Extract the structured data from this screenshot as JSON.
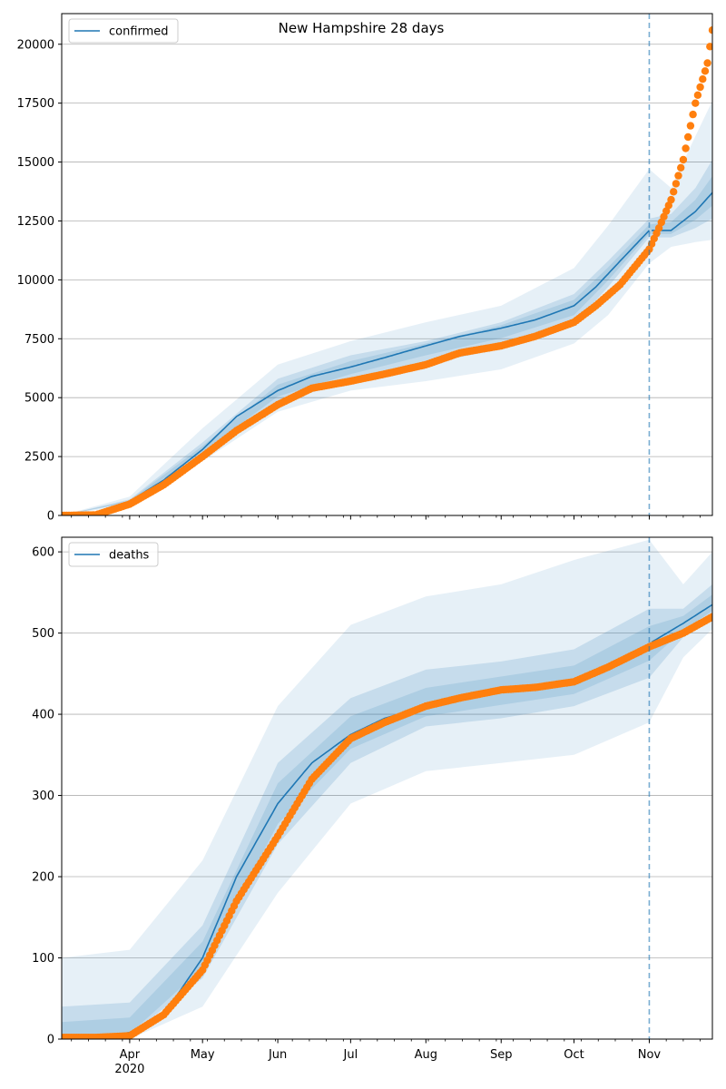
{
  "chart_data": [
    {
      "type": "line",
      "title": "New Hampshire 28 days",
      "xlabel": "",
      "ylabel": "",
      "grid": "horizontal",
      "legend_position": "top-left",
      "legend": "confirmed",
      "forecast_start": "2020-11-01",
      "xlim": [
        "2020-03-04",
        "2020-11-27"
      ],
      "ylim": [
        0,
        21300
      ],
      "yticks": [
        0,
        2500,
        5000,
        7500,
        10000,
        12500,
        15000,
        17500,
        20000
      ],
      "ytick_labels": [
        "0",
        "2500",
        "5000",
        "7500",
        "10000",
        "12500",
        "15000",
        "17500",
        "20000"
      ],
      "colors": {
        "line": "#1f77b4",
        "points": "#ff7f0e",
        "band": "#1f77b4"
      },
      "series": [
        {
          "name": "confirmed",
          "kind": "line",
          "x": [
            "2020-03-04",
            "2020-03-18",
            "2020-04-01",
            "2020-04-15",
            "2020-05-01",
            "2020-05-15",
            "2020-06-01",
            "2020-06-15",
            "2020-07-01",
            "2020-07-15",
            "2020-08-01",
            "2020-08-15",
            "2020-09-01",
            "2020-09-15",
            "2020-10-01",
            "2020-10-10",
            "2020-10-20",
            "2020-11-01",
            "2020-11-10",
            "2020-11-20",
            "2020-11-27"
          ],
          "values": [
            0,
            30,
            600,
            1500,
            2800,
            4200,
            5300,
            5900,
            6300,
            6700,
            7200,
            7600,
            7950,
            8300,
            8900,
            9700,
            10800,
            12100,
            12100,
            12900,
            13700
          ]
        }
      ],
      "observed": {
        "x": [
          "2020-03-04",
          "2020-03-18",
          "2020-04-01",
          "2020-04-15",
          "2020-05-01",
          "2020-05-15",
          "2020-06-01",
          "2020-06-15",
          "2020-07-01",
          "2020-07-15",
          "2020-08-01",
          "2020-08-15",
          "2020-09-01",
          "2020-09-15",
          "2020-10-01",
          "2020-10-10",
          "2020-10-20",
          "2020-11-01",
          "2020-11-05",
          "2020-11-10",
          "2020-11-15",
          "2020-11-20",
          "2020-11-25",
          "2020-11-27"
        ],
        "values": [
          0,
          20,
          480,
          1300,
          2500,
          3600,
          4700,
          5400,
          5700,
          6000,
          6400,
          6900,
          7200,
          7600,
          8200,
          8900,
          9800,
          11300,
          12200,
          13400,
          15100,
          17500,
          19200,
          20600
        ]
      },
      "bands": {
        "x": [
          "2020-03-04",
          "2020-04-01",
          "2020-05-01",
          "2020-06-01",
          "2020-07-01",
          "2020-08-01",
          "2020-09-01",
          "2020-10-01",
          "2020-10-15",
          "2020-11-01",
          "2020-11-10",
          "2020-11-20",
          "2020-11-27"
        ],
        "outer_low": [
          0,
          450,
          2300,
          4400,
          5300,
          5700,
          6200,
          7300,
          8500,
          10700,
          11400,
          11600,
          11700
        ],
        "outer_high": [
          0,
          800,
          3700,
          6400,
          7400,
          8200,
          8900,
          10500,
          12300,
          14700,
          13900,
          16100,
          17600
        ],
        "inner_low": [
          0,
          540,
          2600,
          4800,
          5700,
          6400,
          7100,
          8100,
          9700,
          11800,
          11800,
          12200,
          12600
        ],
        "inner_high": [
          0,
          680,
          3100,
          5800,
          6800,
          7400,
          8200,
          9400,
          10800,
          12600,
          12800,
          13900,
          15100
        ]
      }
    },
    {
      "type": "line",
      "title": "",
      "xlabel": "",
      "ylabel": "",
      "grid": "horizontal",
      "legend_position": "top-left",
      "legend": "deaths",
      "forecast_start": "2020-11-01",
      "xlim": [
        "2020-03-04",
        "2020-11-27"
      ],
      "ylim": [
        0,
        618
      ],
      "yticks": [
        0,
        100,
        200,
        300,
        400,
        500,
        600
      ],
      "ytick_labels": [
        "0",
        "100",
        "200",
        "300",
        "400",
        "500",
        "600"
      ],
      "xtick_labels": [
        "Apr\n2020",
        "May",
        "Jun",
        "Jul",
        "Aug",
        "Sep",
        "Oct",
        "Nov"
      ],
      "xtick_dates": [
        "2020-04-01",
        "2020-05-01",
        "2020-06-01",
        "2020-07-01",
        "2020-08-01",
        "2020-09-01",
        "2020-10-01",
        "2020-11-01"
      ],
      "colors": {
        "line": "#1f77b4",
        "points": "#ff7f0e",
        "band": "#1f77b4"
      },
      "series": [
        {
          "name": "deaths",
          "kind": "line",
          "x": [
            "2020-03-04",
            "2020-03-18",
            "2020-04-01",
            "2020-04-15",
            "2020-05-01",
            "2020-05-15",
            "2020-06-01",
            "2020-06-15",
            "2020-07-01",
            "2020-07-15",
            "2020-08-01",
            "2020-08-15",
            "2020-09-01",
            "2020-09-15",
            "2020-10-01",
            "2020-10-15",
            "2020-11-01",
            "2020-11-15",
            "2020-11-27"
          ],
          "values": [
            2,
            3,
            8,
            30,
            100,
            200,
            290,
            340,
            375,
            395,
            410,
            420,
            428,
            434,
            440,
            455,
            487,
            512,
            535
          ]
        }
      ],
      "observed": {
        "x": [
          "2020-03-04",
          "2020-03-18",
          "2020-04-01",
          "2020-04-15",
          "2020-05-01",
          "2020-05-15",
          "2020-06-01",
          "2020-06-15",
          "2020-07-01",
          "2020-07-15",
          "2020-08-01",
          "2020-08-15",
          "2020-09-01",
          "2020-09-15",
          "2020-10-01",
          "2020-10-15",
          "2020-11-01",
          "2020-11-15",
          "2020-11-27"
        ],
        "values": [
          2,
          2,
          4,
          30,
          85,
          170,
          250,
          320,
          370,
          390,
          410,
          420,
          430,
          433,
          440,
          458,
          483,
          500,
          520
        ]
      },
      "bands": {
        "x": [
          "2020-03-04",
          "2020-04-01",
          "2020-05-01",
          "2020-06-01",
          "2020-07-01",
          "2020-08-01",
          "2020-09-01",
          "2020-10-01",
          "2020-11-01",
          "2020-11-15",
          "2020-11-27"
        ],
        "outer_low": [
          0,
          0,
          40,
          180,
          290,
          330,
          340,
          350,
          390,
          470,
          505
        ],
        "outer_high": [
          100,
          110,
          220,
          410,
          510,
          545,
          560,
          590,
          615,
          560,
          600
        ],
        "inner_low": [
          0,
          5,
          75,
          240,
          340,
          385,
          395,
          410,
          445,
          495,
          520
        ],
        "inner_high": [
          40,
          45,
          140,
          340,
          420,
          455,
          465,
          480,
          530,
          530,
          560
        ]
      }
    }
  ]
}
